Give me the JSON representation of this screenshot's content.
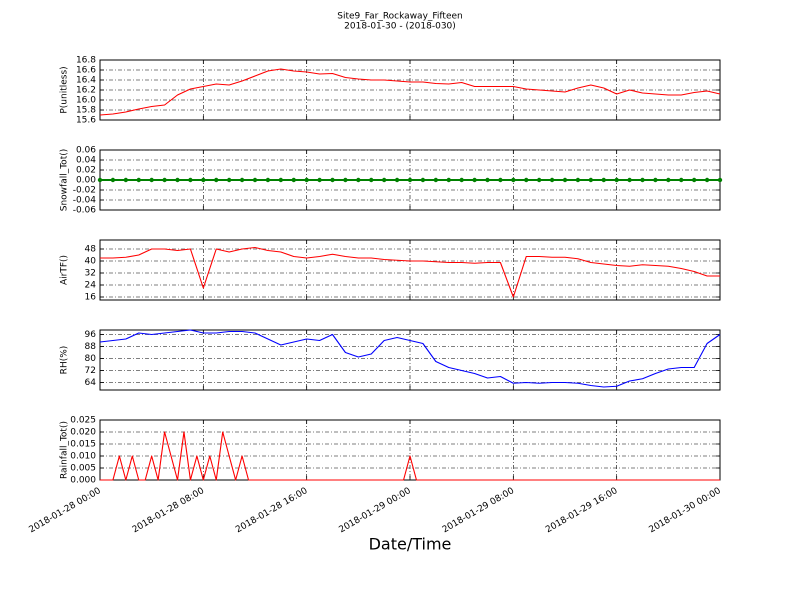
{
  "chart_data": [
    {
      "type": "line",
      "title": "Site9_Far_Rockaway_Fifteen",
      "subtitle": "2018-01-30 - (2018-030)",
      "ylabel": "P(unitless)",
      "color": "#ff0000",
      "grid": true,
      "xlim": [
        "2018-01-28 00:00",
        "2018-01-30 00:00"
      ],
      "xticks": [
        "2018-01-28 00:00",
        "2018-01-28 08:00",
        "2018-01-28 16:00",
        "2018-01-29 00:00",
        "2018-01-29 08:00",
        "2018-01-29 16:00",
        "2018-01-30 00:00"
      ],
      "ylim": [
        15.6,
        16.8
      ],
      "yticks": [
        15.6,
        15.8,
        {
          "value": 16,
          "label": "16.0"
        },
        16.2,
        16.4,
        16.6,
        16.8
      ],
      "x": [
        "2018-01-28 00:00",
        "2018-01-28 01:00",
        "2018-01-28 02:00",
        "2018-01-28 03:00",
        "2018-01-28 04:00",
        "2018-01-28 05:00",
        "2018-01-28 06:00",
        "2018-01-28 07:00",
        "2018-01-28 08:00",
        "2018-01-28 09:00",
        "2018-01-28 10:00",
        "2018-01-28 11:00",
        "2018-01-28 12:00",
        "2018-01-28 13:00",
        "2018-01-28 14:00",
        "2018-01-28 15:00",
        "2018-01-28 16:00",
        "2018-01-28 17:00",
        "2018-01-28 18:00",
        "2018-01-28 19:00",
        "2018-01-28 20:00",
        "2018-01-28 21:00",
        "2018-01-28 22:00",
        "2018-01-28 23:00",
        "2018-01-29 00:00",
        "2018-01-29 01:00",
        "2018-01-29 02:00",
        "2018-01-29 03:00",
        "2018-01-29 04:00",
        "2018-01-29 05:00",
        "2018-01-29 06:00",
        "2018-01-29 07:00",
        "2018-01-29 08:00",
        "2018-01-29 09:00",
        "2018-01-29 10:00",
        "2018-01-29 11:00",
        "2018-01-29 12:00",
        "2018-01-29 13:00",
        "2018-01-29 14:00",
        "2018-01-29 15:00",
        "2018-01-29 16:00",
        "2018-01-29 17:00",
        "2018-01-29 18:00",
        "2018-01-29 19:00",
        "2018-01-29 20:00",
        "2018-01-29 21:00",
        "2018-01-29 22:00",
        "2018-01-29 23:00",
        "2018-01-30 00:00"
      ],
      "values": [
        15.7,
        15.72,
        15.76,
        15.82,
        15.87,
        15.9,
        16.1,
        16.22,
        16.27,
        16.32,
        16.3,
        16.38,
        16.48,
        16.58,
        16.62,
        16.58,
        16.56,
        16.52,
        16.53,
        16.45,
        16.42,
        16.4,
        16.4,
        16.38,
        16.36,
        16.36,
        16.33,
        16.32,
        16.35,
        16.27,
        16.27,
        16.27,
        16.27,
        16.22,
        16.2,
        16.18,
        16.16,
        16.24,
        16.3,
        16.24,
        16.12,
        16.2,
        16.14,
        16.12,
        16.1,
        16.1,
        16.15,
        16.18,
        16.12
      ]
    },
    {
      "type": "line",
      "ylabel": "Snowfall_Tot()",
      "color": "#008000",
      "marker": "o",
      "grid": true,
      "xlim": [
        "2018-01-28 00:00",
        "2018-01-30 00:00"
      ],
      "xticks": [
        "2018-01-28 00:00",
        "2018-01-28 08:00",
        "2018-01-28 16:00",
        "2018-01-29 00:00",
        "2018-01-29 08:00",
        "2018-01-29 16:00",
        "2018-01-30 00:00"
      ],
      "ylim": [
        -0.06,
        0.06
      ],
      "yticks": [
        {
          "value": -0.06,
          "label": "-0.06"
        },
        {
          "value": -0.04,
          "label": "-0.04"
        },
        {
          "value": -0.02,
          "label": "-0.02"
        },
        {
          "value": 0,
          "label": "0.00"
        },
        {
          "value": 0.02,
          "label": "0.02"
        },
        {
          "value": 0.04,
          "label": "0.04"
        },
        {
          "value": 0.06,
          "label": "0.06"
        }
      ],
      "x": [
        "2018-01-28 00:00",
        "2018-01-28 01:00",
        "2018-01-28 02:00",
        "2018-01-28 03:00",
        "2018-01-28 04:00",
        "2018-01-28 05:00",
        "2018-01-28 06:00",
        "2018-01-28 07:00",
        "2018-01-28 08:00",
        "2018-01-28 09:00",
        "2018-01-28 10:00",
        "2018-01-28 11:00",
        "2018-01-28 12:00",
        "2018-01-28 13:00",
        "2018-01-28 14:00",
        "2018-01-28 15:00",
        "2018-01-28 16:00",
        "2018-01-28 17:00",
        "2018-01-28 18:00",
        "2018-01-28 19:00",
        "2018-01-28 20:00",
        "2018-01-28 21:00",
        "2018-01-28 22:00",
        "2018-01-28 23:00",
        "2018-01-29 00:00",
        "2018-01-29 01:00",
        "2018-01-29 02:00",
        "2018-01-29 03:00",
        "2018-01-29 04:00",
        "2018-01-29 05:00",
        "2018-01-29 06:00",
        "2018-01-29 07:00",
        "2018-01-29 08:00",
        "2018-01-29 09:00",
        "2018-01-29 10:00",
        "2018-01-29 11:00",
        "2018-01-29 12:00",
        "2018-01-29 13:00",
        "2018-01-29 14:00",
        "2018-01-29 15:00",
        "2018-01-29 16:00",
        "2018-01-29 17:00",
        "2018-01-29 18:00",
        "2018-01-29 19:00",
        "2018-01-29 20:00",
        "2018-01-29 21:00",
        "2018-01-29 22:00",
        "2018-01-29 23:00",
        "2018-01-30 00:00"
      ],
      "values": [
        0,
        0,
        0,
        0,
        0,
        0,
        0,
        0,
        0,
        0,
        0,
        0,
        0,
        0,
        0,
        0,
        0,
        0,
        0,
        0,
        0,
        0,
        0,
        0,
        0,
        0,
        0,
        0,
        0,
        0,
        0,
        0,
        0,
        0,
        0,
        0,
        0,
        0,
        0,
        0,
        0,
        0,
        0,
        0,
        0,
        0,
        0,
        0,
        0
      ]
    },
    {
      "type": "line",
      "ylabel": "AirTF()",
      "color": "#ff0000",
      "grid": true,
      "xlim": [
        "2018-01-28 00:00",
        "2018-01-30 00:00"
      ],
      "xticks": [
        "2018-01-28 00:00",
        "2018-01-28 08:00",
        "2018-01-28 16:00",
        "2018-01-29 00:00",
        "2018-01-29 08:00",
        "2018-01-29 16:00",
        "2018-01-30 00:00"
      ],
      "ylim": [
        14,
        54
      ],
      "yticks": [
        16,
        24,
        32,
        40,
        48
      ],
      "x": [
        "2018-01-28 00:00",
        "2018-01-28 01:00",
        "2018-01-28 02:00",
        "2018-01-28 03:00",
        "2018-01-28 04:00",
        "2018-01-28 05:00",
        "2018-01-28 06:00",
        "2018-01-28 07:00",
        "2018-01-28 08:00",
        "2018-01-28 09:00",
        "2018-01-28 10:00",
        "2018-01-28 11:00",
        "2018-01-28 12:00",
        "2018-01-28 13:00",
        "2018-01-28 14:00",
        "2018-01-28 15:00",
        "2018-01-28 16:00",
        "2018-01-28 17:00",
        "2018-01-28 18:00",
        "2018-01-28 19:00",
        "2018-01-28 20:00",
        "2018-01-28 21:00",
        "2018-01-28 22:00",
        "2018-01-28 23:00",
        "2018-01-29 00:00",
        "2018-01-29 01:00",
        "2018-01-29 02:00",
        "2018-01-29 03:00",
        "2018-01-29 04:00",
        "2018-01-29 05:00",
        "2018-01-29 06:00",
        "2018-01-29 07:00",
        "2018-01-29 08:00",
        "2018-01-29 09:00",
        "2018-01-29 10:00",
        "2018-01-29 11:00",
        "2018-01-29 12:00",
        "2018-01-29 13:00",
        "2018-01-29 14:00",
        "2018-01-29 15:00",
        "2018-01-29 16:00",
        "2018-01-29 17:00",
        "2018-01-29 18:00",
        "2018-01-29 19:00",
        "2018-01-29 20:00",
        "2018-01-29 21:00",
        "2018-01-29 22:00",
        "2018-01-29 23:00",
        "2018-01-30 00:00"
      ],
      "values": [
        42,
        42,
        42.5,
        44,
        48,
        48,
        47,
        48,
        22,
        48,
        46,
        48,
        49,
        47,
        46,
        43,
        42,
        43,
        44.5,
        43,
        42,
        42,
        41,
        40.5,
        40,
        40,
        39.5,
        39,
        39,
        38.5,
        39,
        39,
        16,
        43,
        43,
        42.5,
        42.5,
        41.5,
        39,
        38,
        37,
        36.5,
        37.5,
        37,
        36.5,
        35,
        33,
        30,
        30
      ]
    },
    {
      "type": "line",
      "ylabel": "RH(%)",
      "color": "#0000ff",
      "grid": true,
      "xlim": [
        "2018-01-28 00:00",
        "2018-01-30 00:00"
      ],
      "xticks": [
        "2018-01-28 00:00",
        "2018-01-28 08:00",
        "2018-01-28 16:00",
        "2018-01-29 00:00",
        "2018-01-29 08:00",
        "2018-01-29 16:00",
        "2018-01-30 00:00"
      ],
      "ylim": [
        59,
        99
      ],
      "yticks": [
        64,
        72,
        80,
        88,
        96
      ],
      "x": [
        "2018-01-28 00:00",
        "2018-01-28 01:00",
        "2018-01-28 02:00",
        "2018-01-28 03:00",
        "2018-01-28 04:00",
        "2018-01-28 05:00",
        "2018-01-28 06:00",
        "2018-01-28 07:00",
        "2018-01-28 08:00",
        "2018-01-28 09:00",
        "2018-01-28 10:00",
        "2018-01-28 11:00",
        "2018-01-28 12:00",
        "2018-01-28 13:00",
        "2018-01-28 14:00",
        "2018-01-28 15:00",
        "2018-01-28 16:00",
        "2018-01-28 17:00",
        "2018-01-28 18:00",
        "2018-01-28 19:00",
        "2018-01-28 20:00",
        "2018-01-28 21:00",
        "2018-01-28 22:00",
        "2018-01-28 23:00",
        "2018-01-29 00:00",
        "2018-01-29 01:00",
        "2018-01-29 02:00",
        "2018-01-29 03:00",
        "2018-01-29 04:00",
        "2018-01-29 05:00",
        "2018-01-29 06:00",
        "2018-01-29 07:00",
        "2018-01-29 08:00",
        "2018-01-29 09:00",
        "2018-01-29 10:00",
        "2018-01-29 11:00",
        "2018-01-29 12:00",
        "2018-01-29 13:00",
        "2018-01-29 14:00",
        "2018-01-29 15:00",
        "2018-01-29 16:00",
        "2018-01-29 17:00",
        "2018-01-29 18:00",
        "2018-01-29 19:00",
        "2018-01-29 20:00",
        "2018-01-29 21:00",
        "2018-01-29 22:00",
        "2018-01-29 23:00",
        "2018-01-30 00:00"
      ],
      "values": [
        91,
        92,
        93,
        97,
        96,
        97,
        98,
        99,
        97,
        97,
        98,
        98,
        97,
        93,
        89,
        91,
        93,
        92,
        96,
        84,
        81,
        83,
        92,
        94,
        92,
        90,
        78,
        74,
        72,
        70,
        67,
        68,
        63.5,
        64,
        63.5,
        64,
        64,
        63.5,
        62,
        61,
        61.5,
        65,
        66.5,
        70,
        73,
        74,
        74,
        90,
        96
      ]
    },
    {
      "type": "line",
      "ylabel": "Rainfall_Tot()",
      "xlabel": "Date/Time",
      "color": "#ff0000",
      "grid": true,
      "xlim": [
        "2018-01-28 00:00",
        "2018-01-30 00:00"
      ],
      "xticks": [
        "2018-01-28 00:00",
        "2018-01-28 08:00",
        "2018-01-28 16:00",
        "2018-01-29 00:00",
        "2018-01-29 08:00",
        "2018-01-29 16:00",
        "2018-01-30 00:00"
      ],
      "ylim": [
        0,
        0.025
      ],
      "yticks": [
        {
          "value": 0,
          "label": "0.000"
        },
        0.005,
        {
          "value": 0.01,
          "label": "0.010"
        },
        0.015,
        {
          "value": 0.02,
          "label": "0.020"
        },
        0.025
      ],
      "x": [
        "2018-01-28 00:00",
        "2018-01-28 00:30",
        "2018-01-28 01:00",
        "2018-01-28 01:30",
        "2018-01-28 02:00",
        "2018-01-28 02:30",
        "2018-01-28 03:00",
        "2018-01-28 03:30",
        "2018-01-28 04:00",
        "2018-01-28 04:30",
        "2018-01-28 05:00",
        "2018-01-28 05:30",
        "2018-01-28 06:00",
        "2018-01-28 06:30",
        "2018-01-28 07:00",
        "2018-01-28 07:30",
        "2018-01-28 08:00",
        "2018-01-28 08:30",
        "2018-01-28 09:00",
        "2018-01-28 09:30",
        "2018-01-28 10:00",
        "2018-01-28 10:30",
        "2018-01-28 11:00",
        "2018-01-28 11:30",
        "2018-01-28 12:00",
        "2018-01-28 12:30",
        "2018-01-28 13:00",
        "2018-01-28 13:30",
        "2018-01-28 14:00",
        "2018-01-28 14:30",
        "2018-01-28 15:00",
        "2018-01-28 15:30",
        "2018-01-28 16:00",
        "2018-01-28 16:30",
        "2018-01-28 17:00",
        "2018-01-28 17:30",
        "2018-01-28 18:00",
        "2018-01-28 18:30",
        "2018-01-28 19:00",
        "2018-01-28 19:30",
        "2018-01-28 20:00",
        "2018-01-28 20:30",
        "2018-01-28 21:00",
        "2018-01-28 21:30",
        "2018-01-28 22:00",
        "2018-01-28 22:30",
        "2018-01-28 23:00",
        "2018-01-28 23:30",
        "2018-01-29 00:00",
        "2018-01-29 00:30",
        "2018-01-29 01:00",
        "2018-01-29 01:30",
        "2018-01-29 02:00",
        "2018-01-29 02:30",
        "2018-01-29 03:00",
        "2018-01-29 03:30",
        "2018-01-29 04:00",
        "2018-01-29 04:30",
        "2018-01-29 05:00",
        "2018-01-29 05:30",
        "2018-01-29 06:00",
        "2018-01-29 06:30",
        "2018-01-29 07:00",
        "2018-01-29 07:30",
        "2018-01-29 08:00",
        "2018-01-29 08:30",
        "2018-01-29 09:00",
        "2018-01-29 09:30",
        "2018-01-29 10:00",
        "2018-01-29 10:30",
        "2018-01-29 11:00",
        "2018-01-29 11:30",
        "2018-01-29 12:00",
        "2018-01-29 12:30",
        "2018-01-29 13:00",
        "2018-01-29 13:30",
        "2018-01-29 14:00",
        "2018-01-29 14:30",
        "2018-01-29 15:00",
        "2018-01-29 15:30",
        "2018-01-29 16:00",
        "2018-01-29 16:30",
        "2018-01-29 17:00",
        "2018-01-29 17:30",
        "2018-01-29 18:00",
        "2018-01-29 18:30",
        "2018-01-29 19:00",
        "2018-01-29 19:30",
        "2018-01-29 20:00",
        "2018-01-29 20:30",
        "2018-01-29 21:00",
        "2018-01-29 21:30",
        "2018-01-29 22:00",
        "2018-01-29 22:30",
        "2018-01-29 23:00",
        "2018-01-29 23:30",
        "2018-01-30 00:00"
      ],
      "values": [
        0,
        0,
        0,
        0.01,
        0,
        0.01,
        0,
        0,
        0.01,
        0,
        0.02,
        0.01,
        0,
        0.02,
        0,
        0.01,
        0,
        0.01,
        0,
        0.02,
        0.01,
        0,
        0.01,
        0,
        0,
        0,
        0,
        0,
        0,
        0,
        0,
        0,
        0,
        0,
        0,
        0,
        0,
        0,
        0,
        0,
        0,
        0,
        0,
        0,
        0,
        0,
        0,
        0,
        0.01,
        0,
        0,
        0,
        0,
        0,
        0,
        0,
        0,
        0,
        0,
        0,
        0,
        0,
        0,
        0,
        0,
        0,
        0,
        0,
        0,
        0,
        0,
        0,
        0,
        0,
        0,
        0,
        0,
        0,
        0,
        0,
        0,
        0,
        0,
        0,
        0,
        0,
        0,
        0,
        0,
        0,
        0,
        0,
        0,
        0,
        0,
        0,
        0
      ]
    }
  ]
}
